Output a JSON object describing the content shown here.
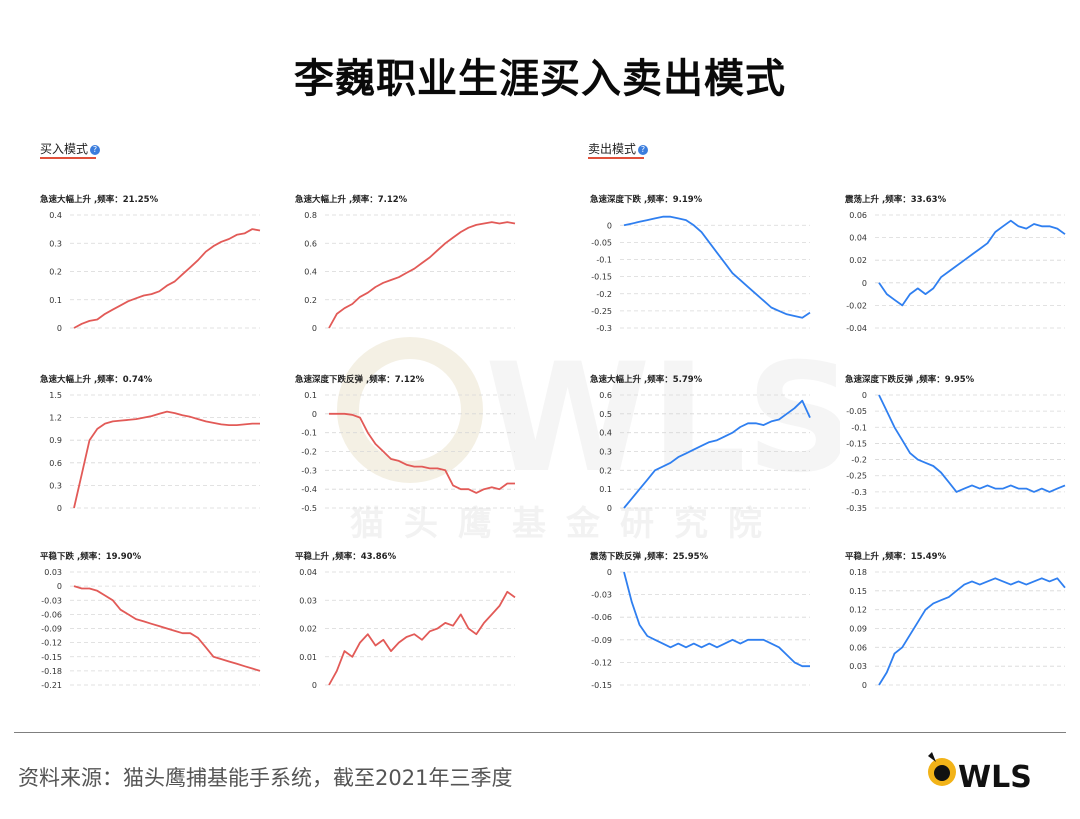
{
  "title": "李巍职业生涯买入卖出模式",
  "buy_section": {
    "label": "买入模式",
    "help": "?"
  },
  "sell_section": {
    "label": "卖出模式",
    "help": "?"
  },
  "watermark_text": "猫头鹰基金研究院",
  "source": "资料来源：猫头鹰捕基能手系统，截至2021年三季度",
  "logo_text": "WLS",
  "colors": {
    "buy": "#e25a57",
    "sell": "#2f7ff0",
    "grid": "#d8d8d8",
    "accent": "#e0503a"
  },
  "chart_data": [
    {
      "type": "line",
      "group": "buy",
      "title": "急速大幅上升 ,频率：21.25%",
      "yticks": [
        "0.4",
        "0.3",
        "0.2",
        "0.1",
        "0"
      ],
      "ylim": [
        0,
        0.4
      ],
      "values": [
        0,
        0.015,
        0.025,
        0.03,
        0.05,
        0.065,
        0.08,
        0.095,
        0.105,
        0.115,
        0.12,
        0.13,
        0.15,
        0.165,
        0.19,
        0.215,
        0.24,
        0.27,
        0.29,
        0.305,
        0.315,
        0.33,
        0.335,
        0.35,
        0.345
      ]
    },
    {
      "type": "line",
      "group": "buy",
      "title": "急速大幅上升 ,频率：7.12%",
      "yticks": [
        "0.8",
        "0.6",
        "0.4",
        "0.2",
        "0"
      ],
      "ylim": [
        0,
        0.8
      ],
      "values": [
        0,
        0.1,
        0.14,
        0.17,
        0.22,
        0.25,
        0.29,
        0.32,
        0.34,
        0.36,
        0.39,
        0.42,
        0.46,
        0.5,
        0.55,
        0.6,
        0.64,
        0.68,
        0.71,
        0.73,
        0.74,
        0.75,
        0.74,
        0.75,
        0.74
      ]
    },
    {
      "type": "line",
      "group": "sell",
      "title": "急速深度下跌 ,频率：9.19%",
      "yticks": [
        "0",
        "-0.05",
        "-0.1",
        "-0.15",
        "-0.2",
        "-0.25",
        "-0.3"
      ],
      "ylim": [
        -0.3,
        0.03
      ],
      "values": [
        0,
        0.005,
        0.01,
        0.015,
        0.02,
        0.025,
        0.025,
        0.02,
        0.015,
        0.0,
        -0.02,
        -0.05,
        -0.08,
        -0.11,
        -0.14,
        -0.16,
        -0.18,
        -0.2,
        -0.22,
        -0.24,
        -0.25,
        -0.26,
        -0.265,
        -0.27,
        -0.255
      ]
    },
    {
      "type": "line",
      "group": "sell",
      "title": "震荡上升 ,频率：33.63%",
      "yticks": [
        "0.06",
        "0.04",
        "0.02",
        "0",
        "-0.02",
        "-0.04"
      ],
      "ylim": [
        -0.04,
        0.06
      ],
      "values": [
        0,
        -0.01,
        -0.015,
        -0.02,
        -0.01,
        -0.005,
        -0.01,
        -0.005,
        0.005,
        0.01,
        0.015,
        0.02,
        0.025,
        0.03,
        0.035,
        0.045,
        0.05,
        0.055,
        0.05,
        0.048,
        0.052,
        0.05,
        0.05,
        0.048,
        0.043
      ]
    },
    {
      "type": "line",
      "group": "buy",
      "title": "急速大幅上升 ,频率：0.74%",
      "yticks": [
        "1.5",
        "1.2",
        "0.9",
        "0.6",
        "0.3",
        "0"
      ],
      "ylim": [
        0,
        1.5
      ],
      "values": [
        0,
        0.45,
        0.9,
        1.05,
        1.12,
        1.15,
        1.16,
        1.17,
        1.18,
        1.2,
        1.22,
        1.25,
        1.28,
        1.26,
        1.23,
        1.21,
        1.18,
        1.15,
        1.13,
        1.11,
        1.1,
        1.1,
        1.11,
        1.12,
        1.12
      ]
    },
    {
      "type": "line",
      "group": "buy",
      "title": "急速深度下跌反弹 ,频率：7.12%",
      "yticks": [
        "0.1",
        "0",
        "-0.1",
        "-0.2",
        "-0.3",
        "-0.4",
        "-0.5"
      ],
      "ylim": [
        -0.5,
        0.1
      ],
      "values": [
        0,
        0,
        0,
        -0.005,
        -0.02,
        -0.1,
        -0.16,
        -0.2,
        -0.24,
        -0.25,
        -0.27,
        -0.28,
        -0.28,
        -0.29,
        -0.29,
        -0.3,
        -0.38,
        -0.4,
        -0.4,
        -0.42,
        -0.4,
        -0.39,
        -0.4,
        -0.37,
        -0.37
      ]
    },
    {
      "type": "line",
      "group": "sell",
      "title": "急速大幅上升 ,频率：5.79%",
      "yticks": [
        "0.6",
        "0.5",
        "0.4",
        "0.3",
        "0.2",
        "0.1",
        "0"
      ],
      "ylim": [
        0,
        0.6
      ],
      "values": [
        0,
        0.05,
        0.1,
        0.15,
        0.2,
        0.22,
        0.24,
        0.27,
        0.29,
        0.31,
        0.33,
        0.35,
        0.36,
        0.38,
        0.4,
        0.43,
        0.45,
        0.45,
        0.44,
        0.46,
        0.47,
        0.5,
        0.53,
        0.57,
        0.48
      ]
    },
    {
      "type": "line",
      "group": "sell",
      "title": "急速深度下跌反弹 ,频率：9.95%",
      "yticks": [
        "0",
        "-0.05",
        "-0.1",
        "-0.15",
        "-0.2",
        "-0.25",
        "-0.3",
        "-0.35"
      ],
      "ylim": [
        -0.35,
        0
      ],
      "values": [
        0,
        -0.05,
        -0.1,
        -0.14,
        -0.18,
        -0.2,
        -0.21,
        -0.22,
        -0.24,
        -0.27,
        -0.3,
        -0.29,
        -0.28,
        -0.29,
        -0.28,
        -0.29,
        -0.29,
        -0.28,
        -0.29,
        -0.29,
        -0.3,
        -0.29,
        -0.3,
        -0.29,
        -0.28
      ]
    },
    {
      "type": "line",
      "group": "buy",
      "title": "平稳下跌 ,频率：19.90%",
      "yticks": [
        "0.03",
        "0",
        "-0.03",
        "-0.06",
        "-0.09",
        "-0.12",
        "-0.15",
        "-0.18",
        "-0.21"
      ],
      "ylim": [
        -0.21,
        0.03
      ],
      "values": [
        0,
        -0.005,
        -0.005,
        -0.01,
        -0.02,
        -0.03,
        -0.05,
        -0.06,
        -0.07,
        -0.075,
        -0.08,
        -0.085,
        -0.09,
        -0.095,
        -0.1,
        -0.1,
        -0.11,
        -0.13,
        -0.15,
        -0.155,
        -0.16,
        -0.165,
        -0.17,
        -0.175,
        -0.18
      ]
    },
    {
      "type": "line",
      "group": "buy",
      "title": "平稳上升 ,频率：43.86%",
      "yticks": [
        "0.04",
        "0.03",
        "0.02",
        "0.01",
        "0"
      ],
      "ylim": [
        0,
        0.04
      ],
      "values": [
        0,
        0.005,
        0.012,
        0.01,
        0.015,
        0.018,
        0.014,
        0.016,
        0.012,
        0.015,
        0.017,
        0.018,
        0.016,
        0.019,
        0.02,
        0.022,
        0.021,
        0.025,
        0.02,
        0.018,
        0.022,
        0.025,
        0.028,
        0.033,
        0.031
      ]
    },
    {
      "type": "line",
      "group": "sell",
      "title": "震荡下跌反弹 ,频率：25.95%",
      "yticks": [
        "0",
        "-0.03",
        "-0.06",
        "-0.09",
        "-0.12",
        "-0.15"
      ],
      "ylim": [
        -0.15,
        0
      ],
      "values": [
        0,
        -0.04,
        -0.07,
        -0.085,
        -0.09,
        -0.095,
        -0.1,
        -0.095,
        -0.1,
        -0.095,
        -0.1,
        -0.095,
        -0.1,
        -0.095,
        -0.09,
        -0.095,
        -0.09,
        -0.09,
        -0.09,
        -0.095,
        -0.1,
        -0.11,
        -0.12,
        -0.125,
        -0.125
      ]
    },
    {
      "type": "line",
      "group": "sell",
      "title": "平稳上升 ,频率：15.49%",
      "yticks": [
        "0.18",
        "0.15",
        "0.12",
        "0.09",
        "0.06",
        "0.03",
        "0"
      ],
      "ylim": [
        0,
        0.18
      ],
      "values": [
        0,
        0.02,
        0.05,
        0.06,
        0.08,
        0.1,
        0.12,
        0.13,
        0.135,
        0.14,
        0.15,
        0.16,
        0.165,
        0.16,
        0.165,
        0.17,
        0.165,
        0.16,
        0.165,
        0.16,
        0.165,
        0.17,
        0.165,
        0.17,
        0.155
      ]
    }
  ]
}
